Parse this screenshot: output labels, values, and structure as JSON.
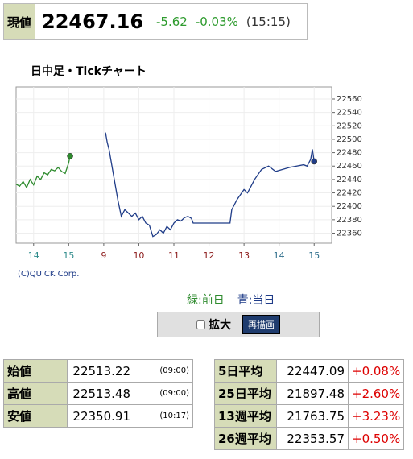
{
  "header": {
    "label": "現値",
    "price": "22467.16",
    "change": "-5.62",
    "percent": "-0.03%",
    "time": "(15:15)"
  },
  "chart_data": {
    "type": "line",
    "title": "日中足・Tickチャート",
    "credit": "(C)QUICK Corp.",
    "xlim": [
      0,
      9
    ],
    "xticks": [
      {
        "value": 0.5,
        "label": "14"
      },
      {
        "value": 1.5,
        "label": "15"
      },
      {
        "value": 2.5,
        "label": "9"
      },
      {
        "value": 3.5,
        "label": "10"
      },
      {
        "value": 4.5,
        "label": "11"
      },
      {
        "value": 5.5,
        "label": "12"
      },
      {
        "value": 6.5,
        "label": "13"
      },
      {
        "value": 7.5,
        "label": "14"
      },
      {
        "value": 8.5,
        "label": "15"
      }
    ],
    "xtick_colors": [
      "#2e8b8b",
      "#2e8b8b",
      "#8b1a1a",
      "#8b1a1a",
      "#8b1a1a",
      "#8b1a1a",
      "#8b1a1a",
      "#2e6e8b",
      "#2e6e8b"
    ],
    "ylim": [
      22345,
      22578
    ],
    "yticks": [
      22360,
      22380,
      22400,
      22420,
      22440,
      22460,
      22480,
      22500,
      22520,
      22540,
      22560
    ],
    "grid": true,
    "series": [
      {
        "name": "緑:前日",
        "color": "#2e8b2e",
        "x": [
          0,
          0.1,
          0.2,
          0.3,
          0.4,
          0.5,
          0.6,
          0.7,
          0.8,
          0.9,
          1.0,
          1.1,
          1.2,
          1.3,
          1.4,
          1.5,
          1.54
        ],
        "values": [
          22433,
          22430,
          22437,
          22428,
          22440,
          22432,
          22445,
          22440,
          22450,
          22447,
          22455,
          22453,
          22458,
          22452,
          22449,
          22465,
          22475
        ]
      },
      {
        "name": "青:当日",
        "color": "#1f3c88",
        "x": [
          2.55,
          2.6,
          2.65,
          2.7,
          2.8,
          2.9,
          3.0,
          3.1,
          3.2,
          3.3,
          3.4,
          3.5,
          3.6,
          3.7,
          3.8,
          3.9,
          4.0,
          4.1,
          4.2,
          4.3,
          4.4,
          4.5,
          4.6,
          4.7,
          4.8,
          4.9,
          5.0,
          5.05,
          5.1,
          5.6,
          6.1,
          6.15,
          6.3,
          6.5,
          6.6,
          6.8,
          7.0,
          7.2,
          7.4,
          7.6,
          7.8,
          8.0,
          8.2,
          8.3,
          8.4,
          8.45,
          8.5
        ],
        "values": [
          22510,
          22495,
          22485,
          22470,
          22440,
          22410,
          22385,
          22395,
          22390,
          22385,
          22390,
          22380,
          22385,
          22375,
          22372,
          22355,
          22358,
          22365,
          22360,
          22370,
          22365,
          22375,
          22380,
          22378,
          22383,
          22385,
          22382,
          22375,
          22375,
          22375,
          22375,
          22395,
          22410,
          22425,
          22420,
          22440,
          22455,
          22460,
          22452,
          22455,
          22458,
          22460,
          22462,
          22460,
          22470,
          22485,
          22467
        ]
      }
    ]
  },
  "controls": {
    "checkbox": "拡大",
    "button": "再描画"
  },
  "table_left": {
    "rows": [
      [
        "始値",
        "22513.22",
        "(09:00)"
      ],
      [
        "高値",
        "22513.48",
        "(09:00)"
      ],
      [
        "安値",
        "22350.91",
        "(10:17)"
      ]
    ]
  },
  "table_right": {
    "rows": [
      [
        "5日平均",
        "22447.09",
        "+0.08%"
      ],
      [
        "25日平均",
        "21897.48",
        "+2.60%"
      ],
      [
        "13週平均",
        "21763.75",
        "+3.23%"
      ],
      [
        "26週平均",
        "22353.57",
        "+0.50%"
      ]
    ]
  }
}
